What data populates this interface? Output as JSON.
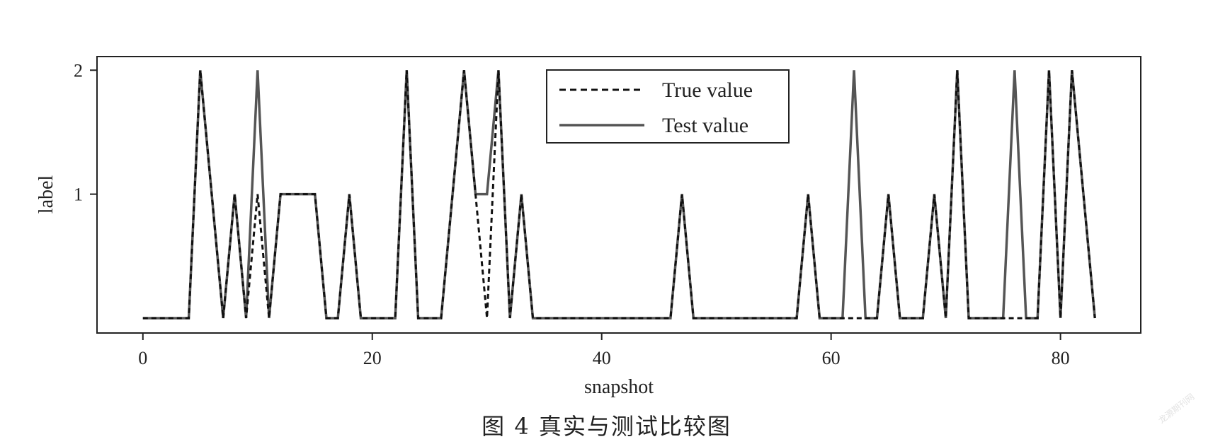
{
  "caption": "图 4   真实与测试比较图",
  "watermark": "龙源期刊网",
  "chart_data": {
    "type": "line",
    "xlabel": "snapshot",
    "ylabel": "label",
    "xlim": [
      -4,
      87
    ],
    "ylim": [
      -0.12,
      2.11
    ],
    "xticks": [
      0,
      20,
      40,
      60,
      80
    ],
    "yticks": [
      1,
      2
    ],
    "grid": false,
    "legend": "top-center",
    "x": [
      0,
      1,
      2,
      3,
      4,
      5,
      6,
      7,
      8,
      9,
      10,
      11,
      12,
      13,
      14,
      15,
      16,
      17,
      18,
      19,
      20,
      21,
      22,
      23,
      24,
      25,
      26,
      27,
      28,
      29,
      30,
      31,
      32,
      33,
      34,
      35,
      36,
      37,
      38,
      39,
      40,
      41,
      42,
      43,
      44,
      45,
      46,
      47,
      48,
      49,
      50,
      51,
      52,
      53,
      54,
      55,
      56,
      57,
      58,
      59,
      60,
      61,
      62,
      63,
      64,
      65,
      66,
      67,
      68,
      69,
      70,
      71,
      72,
      73,
      74,
      75,
      76,
      77,
      78,
      79,
      80,
      81,
      82,
      83
    ],
    "series": [
      {
        "name": "True value",
        "style": "dashed",
        "color": "#111111",
        "values": [
          0,
          0,
          0,
          0,
          0,
          2,
          1,
          0,
          1,
          0,
          1,
          0,
          1,
          1,
          1,
          1,
          0,
          0,
          1,
          0,
          0,
          0,
          0,
          2,
          0,
          0,
          0,
          1,
          2,
          1,
          0,
          2,
          0,
          1,
          0,
          0,
          0,
          0,
          0,
          0,
          0,
          0,
          0,
          0,
          0,
          0,
          0,
          1,
          0,
          0,
          0,
          0,
          0,
          0,
          0,
          0,
          0,
          0,
          1,
          0,
          0,
          0,
          0,
          0,
          0,
          1,
          0,
          0,
          0,
          1,
          0,
          2,
          0,
          0,
          0,
          0,
          0,
          0,
          0,
          2,
          0,
          2,
          1,
          0
        ]
      },
      {
        "name": "Test value",
        "style": "solid",
        "color": "#555555",
        "values": [
          0,
          0,
          0,
          0,
          0,
          2,
          1,
          0,
          1,
          0,
          2,
          0,
          1,
          1,
          1,
          1,
          0,
          0,
          1,
          0,
          0,
          0,
          0,
          2,
          0,
          0,
          0,
          1,
          2,
          1,
          1,
          2,
          0,
          1,
          0,
          0,
          0,
          0,
          0,
          0,
          0,
          0,
          0,
          0,
          0,
          0,
          0,
          1,
          0,
          0,
          0,
          0,
          0,
          0,
          0,
          0,
          0,
          0,
          1,
          0,
          0,
          0,
          2,
          0,
          0,
          1,
          0,
          0,
          0,
          1,
          0,
          2,
          0,
          0,
          0,
          0,
          2,
          0,
          0,
          2,
          0,
          2,
          1,
          0
        ]
      }
    ]
  }
}
